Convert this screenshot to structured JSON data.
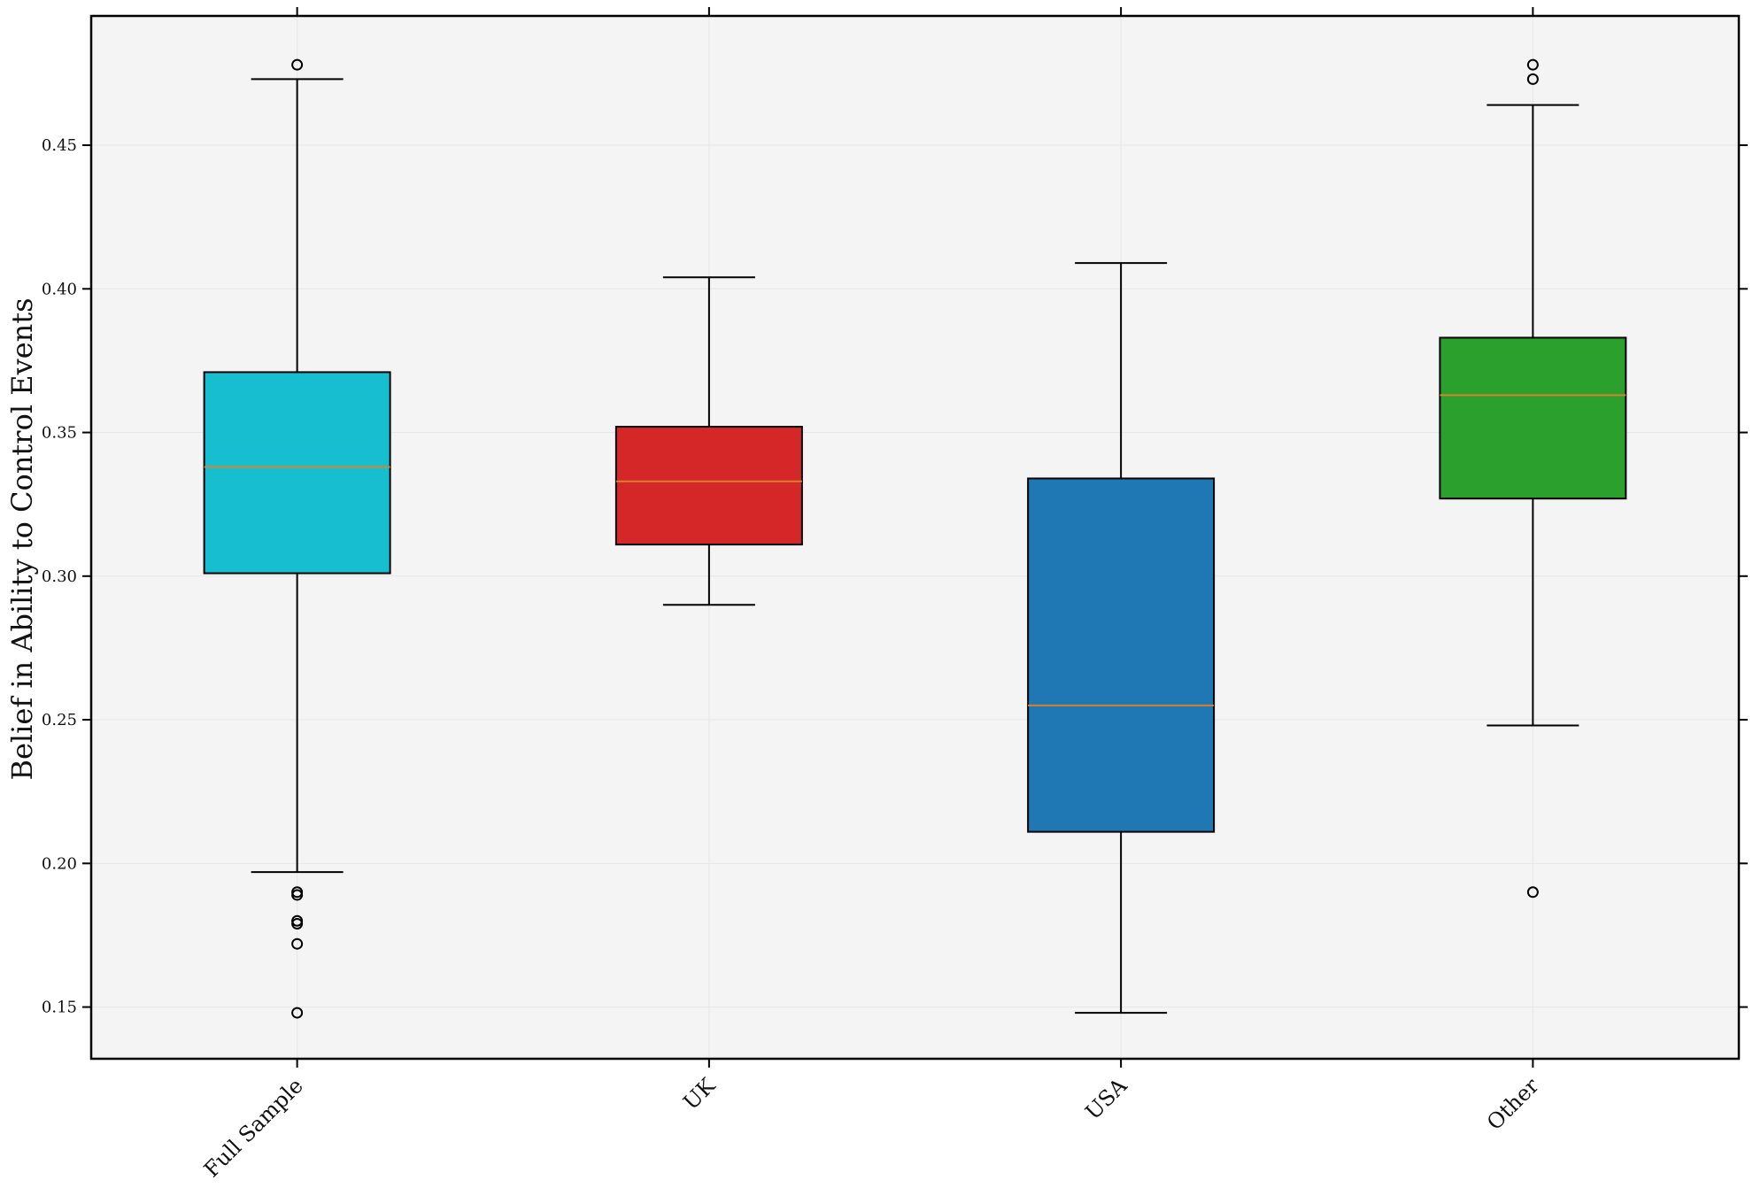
{
  "chart_data": {
    "type": "box",
    "title": "",
    "xlabel": "",
    "ylabel": "Belief in Ability to Control Events",
    "ylim": [
      0.132,
      0.495
    ],
    "yticks": [
      0.15,
      0.2,
      0.25,
      0.3,
      0.35,
      0.4,
      0.45
    ],
    "ytick_labels": [
      "0.15",
      "0.20",
      "0.25",
      "0.30",
      "0.35",
      "0.40",
      "0.45"
    ],
    "grid": true,
    "categories": [
      "Full Sample",
      "UK",
      "USA",
      "Other"
    ],
    "boxes": [
      {
        "category": "Full Sample",
        "color": "#17becf",
        "whisker_low": 0.197,
        "q1": 0.301,
        "median": 0.338,
        "q3": 0.371,
        "whisker_high": 0.473,
        "outliers": [
          0.478,
          0.19,
          0.189,
          0.18,
          0.179,
          0.172,
          0.148
        ]
      },
      {
        "category": "UK",
        "color": "#d62728",
        "whisker_low": 0.29,
        "q1": 0.311,
        "median": 0.333,
        "q3": 0.352,
        "whisker_high": 0.404,
        "outliers": []
      },
      {
        "category": "USA",
        "color": "#1f77b4",
        "whisker_low": 0.148,
        "q1": 0.211,
        "median": 0.255,
        "q3": 0.334,
        "whisker_high": 0.409,
        "outliers": []
      },
      {
        "category": "Other",
        "color": "#2ca02c",
        "whisker_low": 0.248,
        "q1": 0.327,
        "median": 0.363,
        "q3": 0.383,
        "whisker_high": 0.464,
        "outliers": [
          0.478,
          0.473,
          0.19
        ]
      }
    ],
    "median_color": "#d9822b",
    "plot_background": "#f4f4f4"
  }
}
